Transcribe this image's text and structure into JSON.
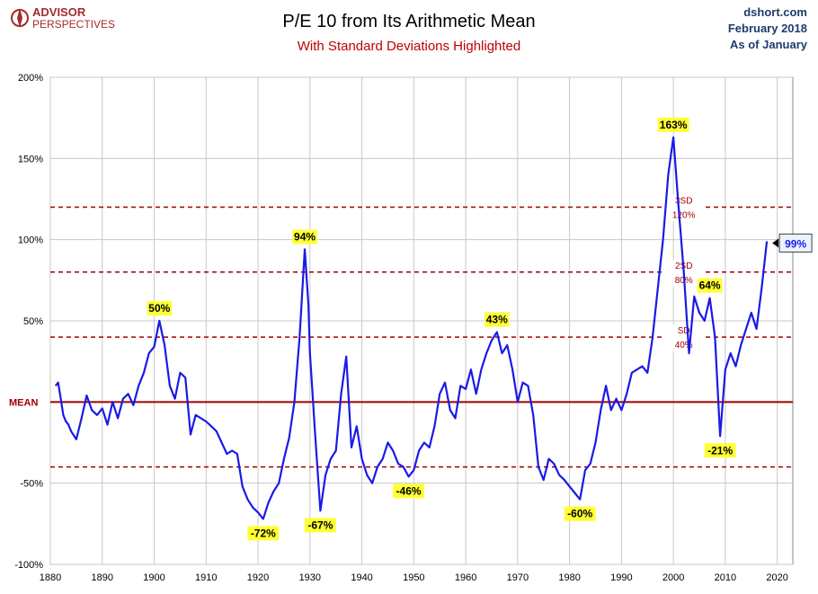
{
  "header": {
    "logo_word1": "ADVISOR",
    "logo_word2": "PERSPECTIVES",
    "title": "P/E 10 from Its Arithmetic Mean",
    "subtitle": "With Standard Deviations Highlighted",
    "source": "dshort.com",
    "date": "February 2018",
    "as_of": "As of January"
  },
  "colors": {
    "line": "#1a1ae6",
    "mean": "#a00000",
    "sd": "#a00000",
    "label_bg": "#ffff33",
    "grid": "#c8c8c8",
    "title": "#000000",
    "subtitle": "#c00000",
    "source": "#1f3a6e",
    "logo": "#a52a2a"
  },
  "chart_data": {
    "type": "line",
    "xlim": [
      1880,
      2023
    ],
    "ylim": [
      -100,
      200
    ],
    "x_ticks": [
      1880,
      1890,
      1900,
      1910,
      1920,
      1930,
      1940,
      1950,
      1960,
      1970,
      1980,
      1990,
      2000,
      2010,
      2020
    ],
    "y_ticks": [
      {
        "value": 200,
        "label": "200%"
      },
      {
        "value": 150,
        "label": "150%"
      },
      {
        "value": 100,
        "label": "100%"
      },
      {
        "value": 50,
        "label": "50%"
      },
      {
        "value": -50,
        "label": "-50%"
      },
      {
        "value": -100,
        "label": "-100%"
      }
    ],
    "grid": true,
    "mean": {
      "value": 0,
      "label": "MEAN"
    },
    "sd_lines": [
      {
        "value": 120,
        "label1": "3SD",
        "label2": "120%"
      },
      {
        "value": 80,
        "label1": "2SD",
        "label2": "80%"
      },
      {
        "value": 40,
        "label1": "SD",
        "label2": "40%"
      },
      {
        "value": -40
      }
    ],
    "points": [
      [
        1881,
        10
      ],
      [
        1881.5,
        12
      ],
      [
        1882,
        2
      ],
      [
        1882.5,
        -8
      ],
      [
        1883,
        -12
      ],
      [
        1883.5,
        -14
      ],
      [
        1884,
        -18
      ],
      [
        1885,
        -23
      ],
      [
        1886,
        -10
      ],
      [
        1887,
        4
      ],
      [
        1888,
        -5
      ],
      [
        1889,
        -8
      ],
      [
        1890,
        -4
      ],
      [
        1891,
        -14
      ],
      [
        1892,
        0
      ],
      [
        1893,
        -10
      ],
      [
        1894,
        2
      ],
      [
        1895,
        5
      ],
      [
        1896,
        -2
      ],
      [
        1897,
        10
      ],
      [
        1898,
        18
      ],
      [
        1899,
        30
      ],
      [
        1900,
        34
      ],
      [
        1901,
        50
      ],
      [
        1902,
        35
      ],
      [
        1903,
        10
      ],
      [
        1904,
        2
      ],
      [
        1905,
        18
      ],
      [
        1906,
        15
      ],
      [
        1907,
        -20
      ],
      [
        1908,
        -8
      ],
      [
        1909,
        -10
      ],
      [
        1910,
        -12
      ],
      [
        1911,
        -15
      ],
      [
        1912,
        -18
      ],
      [
        1913,
        -25
      ],
      [
        1914,
        -32
      ],
      [
        1915,
        -30
      ],
      [
        1916,
        -32
      ],
      [
        1917,
        -52
      ],
      [
        1918,
        -60
      ],
      [
        1919,
        -65
      ],
      [
        1920,
        -68
      ],
      [
        1921,
        -72
      ],
      [
        1922,
        -62
      ],
      [
        1923,
        -55
      ],
      [
        1924,
        -50
      ],
      [
        1925,
        -35
      ],
      [
        1926,
        -22
      ],
      [
        1927,
        0
      ],
      [
        1928,
        40
      ],
      [
        1929,
        94
      ],
      [
        1929.7,
        60
      ],
      [
        1930,
        30
      ],
      [
        1931,
        -20
      ],
      [
        1932,
        -67
      ],
      [
        1933,
        -45
      ],
      [
        1934,
        -35
      ],
      [
        1935,
        -30
      ],
      [
        1936,
        5
      ],
      [
        1937,
        28
      ],
      [
        1938,
        -28
      ],
      [
        1939,
        -15
      ],
      [
        1940,
        -35
      ],
      [
        1941,
        -45
      ],
      [
        1942,
        -50
      ],
      [
        1943,
        -40
      ],
      [
        1944,
        -35
      ],
      [
        1945,
        -25
      ],
      [
        1946,
        -30
      ],
      [
        1947,
        -38
      ],
      [
        1948,
        -40
      ],
      [
        1949,
        -46
      ],
      [
        1950,
        -42
      ],
      [
        1951,
        -30
      ],
      [
        1952,
        -25
      ],
      [
        1953,
        -28
      ],
      [
        1954,
        -15
      ],
      [
        1955,
        5
      ],
      [
        1956,
        12
      ],
      [
        1957,
        -5
      ],
      [
        1958,
        -10
      ],
      [
        1959,
        10
      ],
      [
        1960,
        8
      ],
      [
        1961,
        20
      ],
      [
        1962,
        5
      ],
      [
        1963,
        20
      ],
      [
        1964,
        30
      ],
      [
        1965,
        38
      ],
      [
        1966,
        43
      ],
      [
        1967,
        30
      ],
      [
        1968,
        35
      ],
      [
        1969,
        20
      ],
      [
        1970,
        0
      ],
      [
        1971,
        12
      ],
      [
        1972,
        10
      ],
      [
        1973,
        -8
      ],
      [
        1974,
        -40
      ],
      [
        1975,
        -48
      ],
      [
        1976,
        -35
      ],
      [
        1977,
        -38
      ],
      [
        1978,
        -45
      ],
      [
        1979,
        -48
      ],
      [
        1980,
        -52
      ],
      [
        1981,
        -56
      ],
      [
        1982,
        -60
      ],
      [
        1983,
        -42
      ],
      [
        1984,
        -38
      ],
      [
        1985,
        -25
      ],
      [
        1986,
        -5
      ],
      [
        1987,
        10
      ],
      [
        1988,
        -5
      ],
      [
        1989,
        2
      ],
      [
        1990,
        -5
      ],
      [
        1991,
        5
      ],
      [
        1992,
        18
      ],
      [
        1993,
        20
      ],
      [
        1994,
        22
      ],
      [
        1995,
        18
      ],
      [
        1996,
        40
      ],
      [
        1997,
        70
      ],
      [
        1998,
        100
      ],
      [
        1999,
        140
      ],
      [
        2000,
        163
      ],
      [
        2001,
        120
      ],
      [
        2002,
        80
      ],
      [
        2003,
        30
      ],
      [
        2004,
        65
      ],
      [
        2005,
        55
      ],
      [
        2006,
        50
      ],
      [
        2007,
        64
      ],
      [
        2008,
        40
      ],
      [
        2009,
        -21
      ],
      [
        2010,
        20
      ],
      [
        2011,
        30
      ],
      [
        2012,
        22
      ],
      [
        2013,
        35
      ],
      [
        2014,
        45
      ],
      [
        2015,
        55
      ],
      [
        2016,
        45
      ],
      [
        2017,
        70
      ],
      [
        2018,
        99
      ]
    ],
    "annotations": [
      {
        "x": 1901,
        "y": 50,
        "label": "50%",
        "pos": "above"
      },
      {
        "x": 1921,
        "y": -72,
        "label": "-72%",
        "pos": "below"
      },
      {
        "x": 1929,
        "y": 94,
        "label": "94%",
        "pos": "above"
      },
      {
        "x": 1932,
        "y": -67,
        "label": "-67%",
        "pos": "below"
      },
      {
        "x": 1949,
        "y": -46,
        "label": "-46%",
        "pos": "below"
      },
      {
        "x": 1966,
        "y": 43,
        "label": "43%",
        "pos": "above"
      },
      {
        "x": 1982,
        "y": -60,
        "label": "-60%",
        "pos": "below"
      },
      {
        "x": 2000,
        "y": 163,
        "label": "163%",
        "pos": "above"
      },
      {
        "x": 2007,
        "y": 64,
        "label": "64%",
        "pos": "above"
      },
      {
        "x": 2009,
        "y": -21,
        "label": "-21%",
        "pos": "below"
      }
    ],
    "current": {
      "x": 2018,
      "y": 99,
      "label": "99%"
    }
  }
}
